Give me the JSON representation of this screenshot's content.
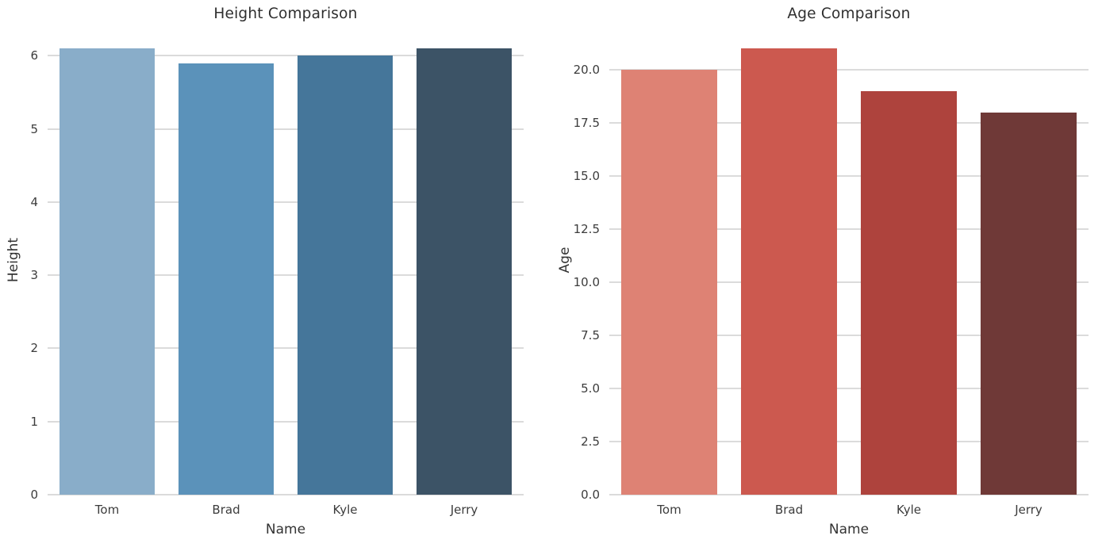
{
  "style": {
    "background": "#ffffff",
    "grid_color": "#dbdbdb",
    "title_color": "#2e2e2e",
    "tick_color": "#3c3c3c",
    "axis_label_color": "#333333"
  },
  "chart_data": [
    {
      "type": "bar",
      "title": "Height Comparison",
      "xlabel": "Name",
      "ylabel": "Height",
      "categories": [
        "Tom",
        "Brad",
        "Kyle",
        "Jerry"
      ],
      "values": [
        6.1,
        5.9,
        6.0,
        6.1
      ],
      "bar_colors": [
        "#89adc9",
        "#5b92ba",
        "#45769a",
        "#3c5366"
      ],
      "ylim": [
        0,
        6.405
      ],
      "yticks": [
        {
          "value": 0,
          "label": "0"
        },
        {
          "value": 1,
          "label": "1"
        },
        {
          "value": 2,
          "label": "2"
        },
        {
          "value": 3,
          "label": "3"
        },
        {
          "value": 4,
          "label": "4"
        },
        {
          "value": 5,
          "label": "5"
        },
        {
          "value": 6,
          "label": "6"
        }
      ],
      "grid": "horizontal",
      "legend": "none"
    },
    {
      "type": "bar",
      "title": "Age Comparison",
      "xlabel": "Name",
      "ylabel": "Age",
      "categories": [
        "Tom",
        "Brad",
        "Kyle",
        "Jerry"
      ],
      "values": [
        20,
        21,
        19,
        18
      ],
      "bar_colors": [
        "#de8274",
        "#cc594f",
        "#ae433d",
        "#6f3937"
      ],
      "ylim": [
        0,
        22.05
      ],
      "yticks": [
        {
          "value": 0,
          "label": "0.0"
        },
        {
          "value": 2.5,
          "label": "2.5"
        },
        {
          "value": 5,
          "label": "5.0"
        },
        {
          "value": 7.5,
          "label": "7.5"
        },
        {
          "value": 10,
          "label": "10.0"
        },
        {
          "value": 12.5,
          "label": "12.5"
        },
        {
          "value": 15,
          "label": "15.0"
        },
        {
          "value": 17.5,
          "label": "17.5"
        },
        {
          "value": 20,
          "label": "20.0"
        }
      ],
      "grid": "horizontal",
      "legend": "none"
    }
  ]
}
